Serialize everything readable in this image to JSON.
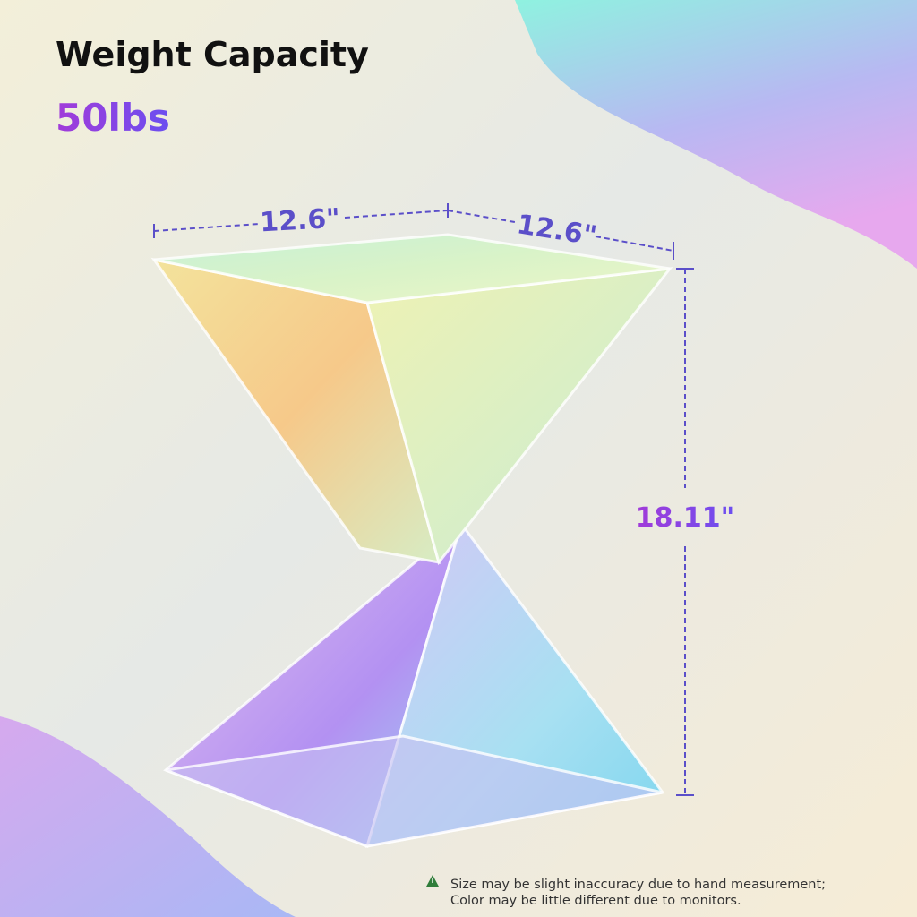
{
  "header": {
    "title": "Weight Capacity",
    "capacity": "50lbs"
  },
  "dimensions": {
    "width": "12.6\"",
    "depth": "12.6\"",
    "height": "18.11\""
  },
  "note": {
    "line1": "Size may be slight inaccuracy due to hand measurement;",
    "line2": "Color may be little different due to monitors."
  }
}
